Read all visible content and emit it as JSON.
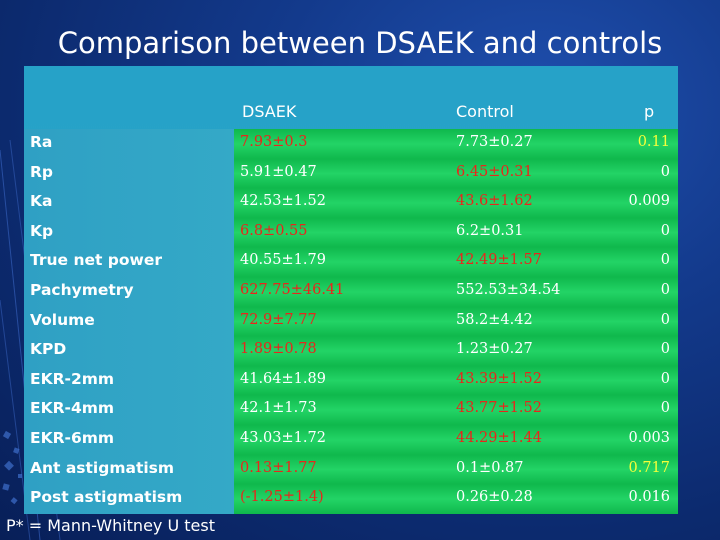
{
  "title": "Comparison between DSAEK and controls",
  "headers": {
    "col1": "DSAEK",
    "col2": "Control",
    "col3": "p"
  },
  "rows": [
    {
      "label": "Ra",
      "dsaek": "7.93±0.3",
      "control": "7.73±0.27",
      "p": "0.11",
      "dsaek_color": "red",
      "control_color": "white",
      "p_color": "yellow"
    },
    {
      "label": "Rp",
      "dsaek": "5.91±0.47",
      "control": "6.45±0.31",
      "p": "0",
      "dsaek_color": "white",
      "control_color": "red",
      "p_color": "white"
    },
    {
      "label": "Ka",
      "dsaek": "42.53±1.52",
      "control": "43.6±1.62",
      "p": "0.009",
      "dsaek_color": "white",
      "control_color": "red",
      "p_color": "white"
    },
    {
      "label": "Kp",
      "dsaek": "6.8±0.55",
      "control": "6.2±0.31",
      "p": "0",
      "dsaek_color": "red",
      "control_color": "white",
      "p_color": "white"
    },
    {
      "label": "True net power",
      "dsaek": "40.55±1.79",
      "control": "42.49±1.57",
      "p": "0",
      "dsaek_color": "white",
      "control_color": "red",
      "p_color": "white"
    },
    {
      "label": "Pachymetry",
      "dsaek": "627.75±46.41",
      "control": "552.53±34.54",
      "p": "0",
      "dsaek_color": "red",
      "control_color": "white",
      "p_color": "white"
    },
    {
      "label": "Volume",
      "dsaek": "72.9±7.77",
      "control": "58.2±4.42",
      "p": "0",
      "dsaek_color": "red",
      "control_color": "white",
      "p_color": "white"
    },
    {
      "label": "KPD",
      "dsaek": "1.89±0.78",
      "control": "1.23±0.27",
      "p": "0",
      "dsaek_color": "red",
      "control_color": "white",
      "p_color": "white"
    },
    {
      "label": "EKR-2mm",
      "dsaek": "41.64±1.89",
      "control": "43.39±1.52",
      "p": "0",
      "dsaek_color": "white",
      "control_color": "red",
      "p_color": "white"
    },
    {
      "label": "EKR-4mm",
      "dsaek": "42.1±1.73",
      "control": "43.77±1.52",
      "p": "0",
      "dsaek_color": "white",
      "control_color": "red",
      "p_color": "white"
    },
    {
      "label": "EKR-6mm",
      "dsaek": "43.03±1.72",
      "control": "44.29±1.44",
      "p": "0.003",
      "dsaek_color": "white",
      "control_color": "red",
      "p_color": "white"
    },
    {
      "label": "Ant astigmatism",
      "dsaek": "0.13±1.77",
      "control": "0.1±0.87",
      "p": "0.717",
      "dsaek_color": "red",
      "control_color": "white",
      "p_color": "yellow"
    },
    {
      "label": "Post astigmatism",
      "dsaek": "(-1.25±1.4)",
      "control": "0.26±0.28",
      "p": "0.016",
      "dsaek_color": "red",
      "control_color": "white",
      "p_color": "white"
    }
  ],
  "footnote": "P* = Mann-Whitney U test"
}
